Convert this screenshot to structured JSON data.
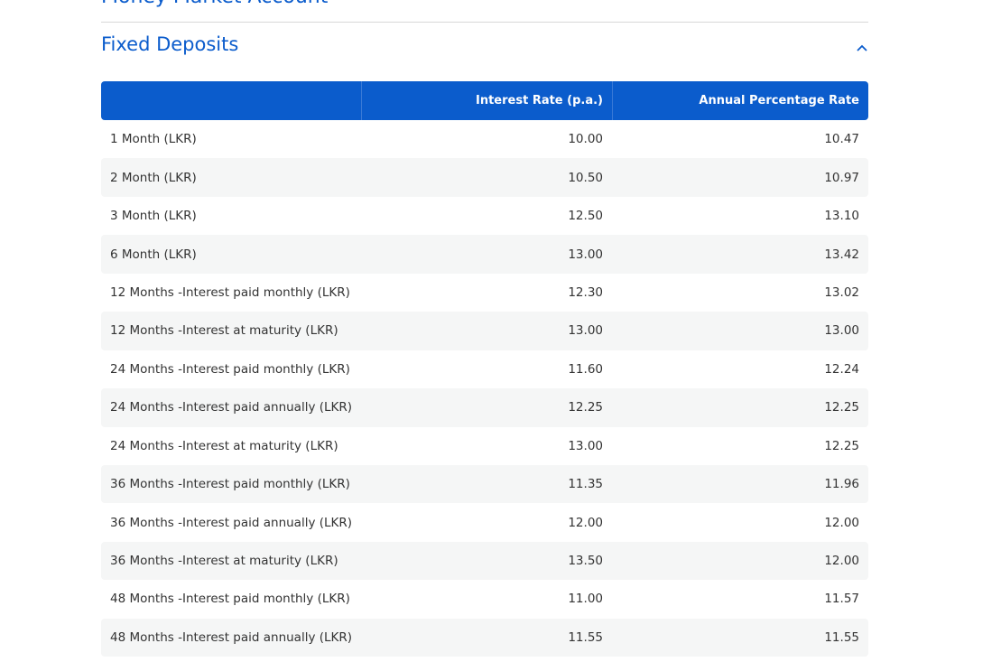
{
  "previous_section": {
    "title": "Money Market Account"
  },
  "section": {
    "title": "Fixed Deposits"
  },
  "table": {
    "header": [
      "",
      "Interest Rate (p.a.)",
      "Annual Percentage Rate"
    ],
    "rows": [
      [
        "1 Month (LKR)",
        "10.00",
        "10.47"
      ],
      [
        "2 Month (LKR)",
        "10.50",
        "10.97"
      ],
      [
        "3 Month (LKR)",
        "12.50",
        "13.10"
      ],
      [
        "6 Month (LKR)",
        "13.00",
        "13.42"
      ],
      [
        "12 Months -Interest paid monthly (LKR)",
        "12.30",
        "13.02"
      ],
      [
        "12 Months -Interest at maturity (LKR)",
        "13.00",
        "13.00"
      ],
      [
        "24 Months -Interest paid monthly (LKR)",
        "11.60",
        "12.24"
      ],
      [
        "24 Months -Interest paid annually (LKR)",
        "12.25",
        "12.25"
      ],
      [
        "24 Months -Interest at maturity (LKR)",
        "13.00",
        "12.25"
      ],
      [
        "36 Months -Interest paid monthly (LKR)",
        "11.35",
        "11.96"
      ],
      [
        "36 Months -Interest paid annually (LKR)",
        "12.00",
        "12.00"
      ],
      [
        "36 Months -Interest at maturity (LKR)",
        "13.50",
        "12.00"
      ],
      [
        "48 Months -Interest paid monthly (LKR)",
        "11.00",
        "11.57"
      ],
      [
        "48 Months -Interest paid annually (LKR)",
        "11.55",
        "11.55"
      ]
    ]
  }
}
